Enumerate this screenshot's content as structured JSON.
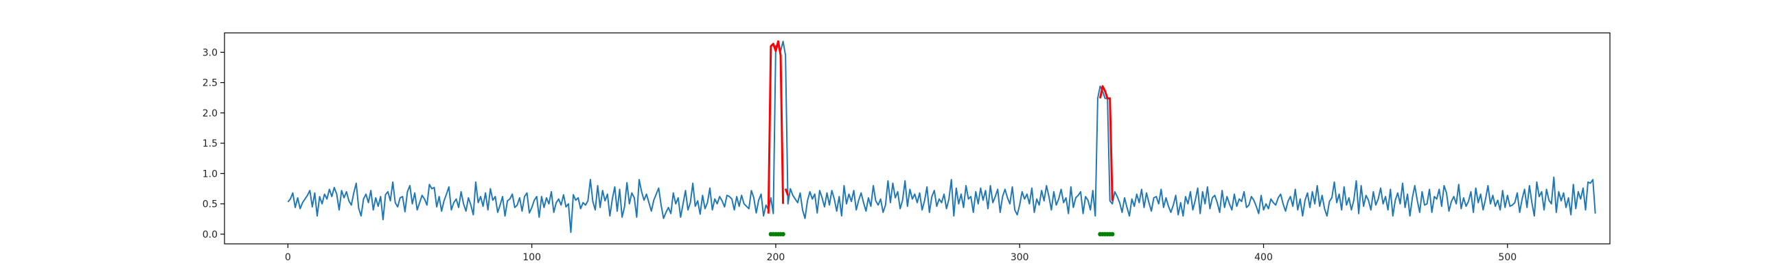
{
  "chart_data": {
    "type": "line",
    "title": "",
    "xlabel": "",
    "ylabel": "",
    "xlim": [
      -26,
      542
    ],
    "ylim": [
      -0.16,
      3.32
    ],
    "x_ticks": [
      0,
      100,
      200,
      300,
      400,
      500
    ],
    "y_ticks": [
      0.0,
      0.5,
      1.0,
      1.5,
      2.0,
      2.5,
      3.0
    ],
    "x_tick_labels": [
      "0",
      "100",
      "200",
      "300",
      "400",
      "500"
    ],
    "y_tick_labels": [
      "0.0",
      "0.5",
      "1.0",
      "1.5",
      "2.0",
      "2.5",
      "3.0"
    ],
    "grid": false,
    "series": [
      {
        "color": "#1f77b4",
        "x_start": 0,
        "values": [
          0.53,
          0.58,
          0.68,
          0.44,
          0.6,
          0.42,
          0.52,
          0.58,
          0.64,
          0.72,
          0.45,
          0.68,
          0.3,
          0.62,
          0.5,
          0.66,
          0.58,
          0.74,
          0.62,
          0.77,
          0.66,
          0.4,
          0.72,
          0.6,
          0.7,
          0.55,
          0.48,
          0.68,
          0.84,
          0.43,
          0.3,
          0.58,
          0.66,
          0.52,
          0.72,
          0.4,
          0.6,
          0.46,
          0.62,
          0.24,
          0.65,
          0.7,
          0.55,
          0.86,
          0.52,
          0.45,
          0.6,
          0.62,
          0.37,
          0.7,
          0.8,
          0.5,
          0.68,
          0.4,
          0.52,
          0.64,
          0.58,
          0.48,
          0.82,
          0.75,
          0.77,
          0.45,
          0.62,
          0.38,
          0.55,
          0.66,
          0.78,
          0.4,
          0.52,
          0.58,
          0.44,
          0.7,
          0.5,
          0.38,
          0.6,
          0.48,
          0.32,
          0.86,
          0.52,
          0.62,
          0.46,
          0.68,
          0.4,
          0.75,
          0.56,
          0.62,
          0.36,
          0.48,
          0.62,
          0.3,
          0.55,
          0.58,
          0.66,
          0.44,
          0.48,
          0.6,
          0.38,
          0.62,
          0.68,
          0.35,
          0.44,
          0.56,
          0.62,
          0.28,
          0.62,
          0.44,
          0.6,
          0.5,
          0.7,
          0.36,
          0.52,
          0.58,
          0.48,
          0.65,
          0.45,
          0.5,
          0.03,
          0.65,
          0.56,
          0.6,
          0.42,
          0.52,
          0.48,
          0.55,
          0.9,
          0.54,
          0.4,
          0.8,
          0.44,
          0.72,
          0.55,
          0.66,
          0.3,
          0.58,
          0.78,
          0.38,
          0.74,
          0.28,
          0.45,
          0.85,
          0.5,
          0.68,
          0.6,
          0.28,
          0.9,
          0.7,
          0.56,
          0.66,
          0.52,
          0.38,
          0.56,
          0.66,
          0.76,
          0.48,
          0.26,
          0.36,
          0.44,
          0.34,
          0.68,
          0.5,
          0.6,
          0.28,
          0.5,
          0.72,
          0.4,
          0.52,
          0.84,
          0.46,
          0.55,
          0.33,
          0.64,
          0.42,
          0.52,
          0.76,
          0.4,
          0.58,
          0.5,
          0.62,
          0.55,
          0.45,
          0.64,
          0.62,
          0.58,
          0.4,
          0.62,
          0.46,
          0.64,
          0.5,
          0.46,
          0.42,
          0.72,
          0.6,
          0.35,
          0.56,
          0.66,
          0.3,
          0.48,
          0.4,
          0.6,
          0.34,
          3.1,
          3.14,
          3.02,
          3.18,
          2.95,
          0.5,
          0.75,
          0.64,
          0.58,
          0.52,
          0.68,
          0.4,
          0.26,
          0.55,
          0.7,
          0.58,
          0.66,
          0.35,
          0.72,
          0.6,
          0.45,
          0.68,
          0.48,
          0.72,
          0.58,
          0.38,
          0.62,
          0.3,
          0.8,
          0.5,
          0.66,
          0.54,
          0.72,
          0.4,
          0.56,
          0.68,
          0.52,
          0.38,
          0.6,
          0.46,
          0.8,
          0.55,
          0.48,
          0.58,
          0.36,
          0.48,
          0.88,
          0.52,
          0.84,
          0.6,
          0.7,
          0.42,
          0.56,
          0.88,
          0.46,
          0.74,
          0.58,
          0.66,
          0.52,
          0.68,
          0.4,
          0.55,
          0.78,
          0.36,
          0.62,
          0.72,
          0.46,
          0.58,
          0.52,
          0.66,
          0.42,
          0.58,
          0.9,
          0.3,
          0.76,
          0.5,
          0.66,
          0.44,
          0.8,
          0.58,
          0.62,
          0.36,
          0.7,
          0.5,
          0.76,
          0.56,
          0.72,
          0.42,
          0.8,
          0.52,
          0.62,
          0.74,
          0.36,
          0.62,
          0.74,
          0.6,
          0.5,
          0.78,
          0.4,
          0.32,
          0.48,
          0.7,
          0.58,
          0.66,
          0.5,
          0.76,
          0.36,
          0.58,
          0.48,
          0.72,
          0.55,
          0.8,
          0.62,
          0.4,
          0.7,
          0.48,
          0.58,
          0.74,
          0.52,
          0.6,
          0.34,
          0.78,
          0.44,
          0.6,
          0.64,
          0.7,
          0.34,
          0.62,
          0.56,
          0.4,
          0.72,
          0.3,
          2.24,
          2.44,
          2.36,
          2.24,
          2.24,
          0.55,
          0.5,
          0.7,
          0.62,
          0.52,
          0.36,
          0.6,
          0.44,
          0.3,
          0.58,
          0.46,
          0.66,
          0.52,
          0.74,
          0.44,
          0.68,
          0.52,
          0.38,
          0.6,
          0.62,
          0.5,
          0.74,
          0.44,
          0.6,
          0.46,
          0.36,
          0.48,
          0.64,
          0.32,
          0.52,
          0.3,
          0.62,
          0.5,
          0.7,
          0.4,
          0.56,
          0.76,
          0.34,
          0.7,
          0.5,
          0.78,
          0.42,
          0.6,
          0.64,
          0.52,
          0.36,
          0.72,
          0.44,
          0.62,
          0.5,
          0.4,
          0.66,
          0.46,
          0.58,
          0.54,
          0.7,
          0.44,
          0.48,
          0.62,
          0.56,
          0.46,
          0.34,
          0.64,
          0.4,
          0.5,
          0.42,
          0.58,
          0.52,
          0.48,
          0.6,
          0.66,
          0.5,
          0.38,
          0.54,
          0.62,
          0.46,
          0.74,
          0.4,
          0.58,
          0.3,
          0.56,
          0.68,
          0.44,
          0.7,
          0.5,
          0.8,
          0.46,
          0.64,
          0.42,
          0.3,
          0.54,
          0.6,
          0.86,
          0.52,
          0.66,
          0.4,
          0.78,
          0.48,
          0.6,
          0.4,
          0.56,
          0.88,
          0.34,
          0.8,
          0.46,
          0.64,
          0.56,
          0.4,
          0.7,
          0.48,
          0.58,
          0.76,
          0.5,
          0.62,
          0.4,
          0.74,
          0.3,
          0.56,
          0.68,
          0.5,
          0.84,
          0.44,
          0.66,
          0.3,
          0.6,
          0.8,
          0.56,
          0.36,
          0.7,
          0.48,
          0.5,
          0.74,
          0.36,
          0.62,
          0.58,
          0.74,
          0.46,
          0.8,
          0.68,
          0.38,
          0.54,
          0.62,
          0.5,
          0.82,
          0.42,
          0.6,
          0.46,
          0.54,
          0.7,
          0.36,
          0.76,
          0.52,
          0.66,
          0.4,
          0.58,
          0.8,
          0.5,
          0.64,
          0.46,
          0.56,
          0.4,
          0.72,
          0.44,
          0.64,
          0.46,
          0.48,
          0.52,
          0.68,
          0.36,
          0.58,
          0.74,
          0.44,
          0.8,
          0.52,
          0.3,
          0.86,
          0.62,
          0.7,
          0.4,
          0.74,
          0.56,
          0.5,
          0.94,
          0.36,
          0.7,
          0.55,
          0.68,
          0.44,
          0.6,
          0.32,
          0.82,
          0.42,
          0.7,
          0.58,
          0.76,
          0.4,
          0.86,
          0.84,
          0.9,
          0.34
        ]
      },
      {
        "color": "#ff0000",
        "segments": [
          {
            "x": [
              197,
              198,
              199,
              200,
              201,
              202,
              203
            ],
            "y": [
              0.34,
              3.1,
              3.14,
              3.02,
              3.18,
              2.95,
              0.5
            ]
          },
          {
            "x": [
              204,
              205
            ],
            "y": [
              0.75,
              0.64
            ]
          },
          {
            "x": [
              333,
              334,
              335,
              336,
              337,
              338
            ],
            "y": [
              2.24,
              2.44,
              2.36,
              2.24,
              2.24,
              0.55
            ]
          }
        ]
      },
      {
        "color": "#008000",
        "type": "markers",
        "x": [
          198,
          199,
          200,
          201,
          202,
          203,
          333,
          334,
          335,
          336,
          337,
          338
        ],
        "y": [
          0,
          0,
          0,
          0,
          0,
          0,
          0,
          0,
          0,
          0,
          0,
          0
        ]
      }
    ]
  }
}
